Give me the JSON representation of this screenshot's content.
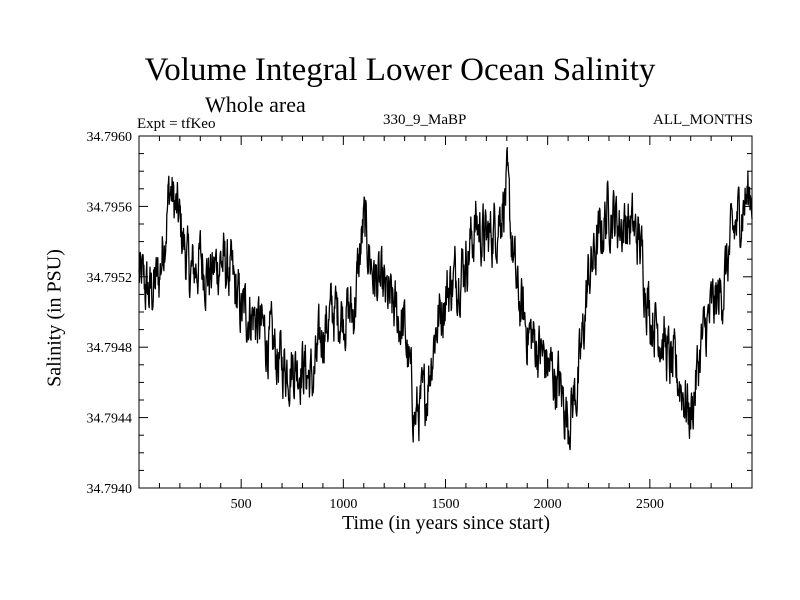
{
  "chart_data": {
    "type": "line",
    "title": "Volume Integral Lower Ocean Salinity",
    "subtitle": "Whole area",
    "experiment_label": "Expt = tfKeo",
    "center_label": "330_9_MaBP",
    "right_label": "ALL_MONTHS",
    "xlabel": "Time (in years since start)",
    "ylabel": "Salinity (in PSU)",
    "xlim": [
      0,
      3000
    ],
    "ylim": [
      34.794,
      34.796
    ],
    "xticks": [
      500,
      1000,
      1500,
      2000,
      2500
    ],
    "xtick_labels": [
      "500",
      "1000",
      "1500",
      "2000",
      "2500"
    ],
    "yticks": [
      34.794,
      34.7944,
      34.7948,
      34.7952,
      34.7956,
      34.796
    ],
    "ytick_labels": [
      "34.7940",
      "34.7944",
      "34.7948",
      "34.7952",
      "34.7956",
      "34.7960"
    ],
    "grid": false,
    "series": [
      {
        "color": "#000000",
        "x": [
          0,
          50,
          100,
          150,
          200,
          250,
          300,
          350,
          400,
          450,
          500,
          550,
          600,
          650,
          700,
          750,
          800,
          850,
          900,
          950,
          1000,
          1050,
          1100,
          1150,
          1200,
          1250,
          1300,
          1350,
          1400,
          1450,
          1500,
          1550,
          1600,
          1650,
          1700,
          1750,
          1800,
          1850,
          1900,
          1950,
          2000,
          2050,
          2100,
          2150,
          2200,
          2250,
          2300,
          2350,
          2400,
          2450,
          2500,
          2550,
          2600,
          2650,
          2700,
          2750,
          2800,
          2850,
          2900,
          2950,
          3000
        ],
        "y": [
          34.7952,
          34.7951,
          34.7952,
          34.7957,
          34.7955,
          34.7952,
          34.7953,
          34.7952,
          34.7953,
          34.7952,
          34.795,
          34.795,
          34.7949,
          34.7948,
          34.7947,
          34.7947,
          34.7947,
          34.7946,
          34.7949,
          34.795,
          34.795,
          34.795,
          34.7955,
          34.7952,
          34.7951,
          34.795,
          34.7949,
          34.7944,
          34.7945,
          34.7949,
          34.7951,
          34.7952,
          34.7953,
          34.7955,
          34.7954,
          34.7955,
          34.7957,
          34.7951,
          34.7949,
          34.7948,
          34.7947,
          34.7946,
          34.7944,
          34.7946,
          34.7952,
          34.7954,
          34.7956,
          34.7955,
          34.7955,
          34.7954,
          34.795,
          34.7949,
          34.7947,
          34.7946,
          34.7944,
          34.7948,
          34.795,
          34.7951,
          34.7954,
          34.7956,
          34.7957
        ]
      }
    ]
  }
}
